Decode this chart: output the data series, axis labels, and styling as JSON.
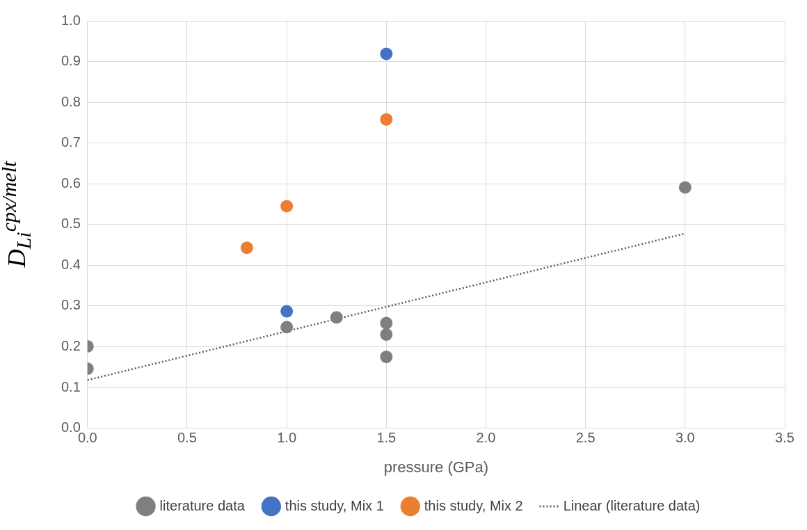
{
  "chart_data": {
    "type": "scatter",
    "xlabel": "pressure (GPa)",
    "ylabel": "D$_{Li}$$^{cpx/melt}$",
    "xlim": [
      0,
      3.5
    ],
    "xticks": [
      {
        "value": 0,
        "label": "0.0"
      },
      {
        "value": 0.5,
        "label": "0.5"
      },
      {
        "value": 1,
        "label": "1.0"
      },
      {
        "value": 1.5,
        "label": "1.5"
      },
      {
        "value": 2,
        "label": "2.0"
      },
      {
        "value": 2.5,
        "label": "2.5"
      },
      {
        "value": 3,
        "label": "3.0"
      },
      {
        "value": 3.5,
        "label": "3.5"
      }
    ],
    "ylim": [
      0,
      1
    ],
    "yticks": [
      {
        "value": 0,
        "label": "0.0"
      },
      {
        "value": 0.1,
        "label": "0.1"
      },
      {
        "value": 0.2,
        "label": "0.2"
      },
      {
        "value": 0.3,
        "label": "0.3"
      },
      {
        "value": 0.4,
        "label": "0.4"
      },
      {
        "value": 0.5,
        "label": "0.5"
      },
      {
        "value": 0.6,
        "label": "0.6"
      },
      {
        "value": 0.7,
        "label": "0.7"
      },
      {
        "value": 0.8,
        "label": "0.8"
      },
      {
        "value": 0.9,
        "label": "0.9"
      },
      {
        "value": 1,
        "label": "1.0"
      }
    ],
    "grid": true,
    "legend": "bottom",
    "marker": "circle",
    "series": [
      {
        "name": "literature data",
        "color": "#7f7f7f",
        "x": [
          0,
          0,
          1,
          1.25,
          1.5,
          1.5,
          1.5,
          3
        ],
        "values": [
          0.201,
          0.146,
          0.248,
          0.272,
          0.258,
          0.23,
          0.175,
          0.591
        ]
      },
      {
        "name": "this study, Mix 1",
        "color": "#4472c4",
        "x": [
          1,
          1.5
        ],
        "values": [
          0.287,
          0.919
        ]
      },
      {
        "name": "this study, Mix 2",
        "color": "#ed7d31",
        "x": [
          0.8,
          1,
          1.5
        ],
        "values": [
          0.443,
          0.545,
          0.758
        ]
      },
      {
        "name": "Linear (literature data)",
        "type": "line",
        "color": "#595959",
        "marker": "none",
        "line_style": "dotted",
        "x": [
          0,
          3
        ],
        "values": [
          0.118,
          0.478
        ]
      }
    ]
  }
}
